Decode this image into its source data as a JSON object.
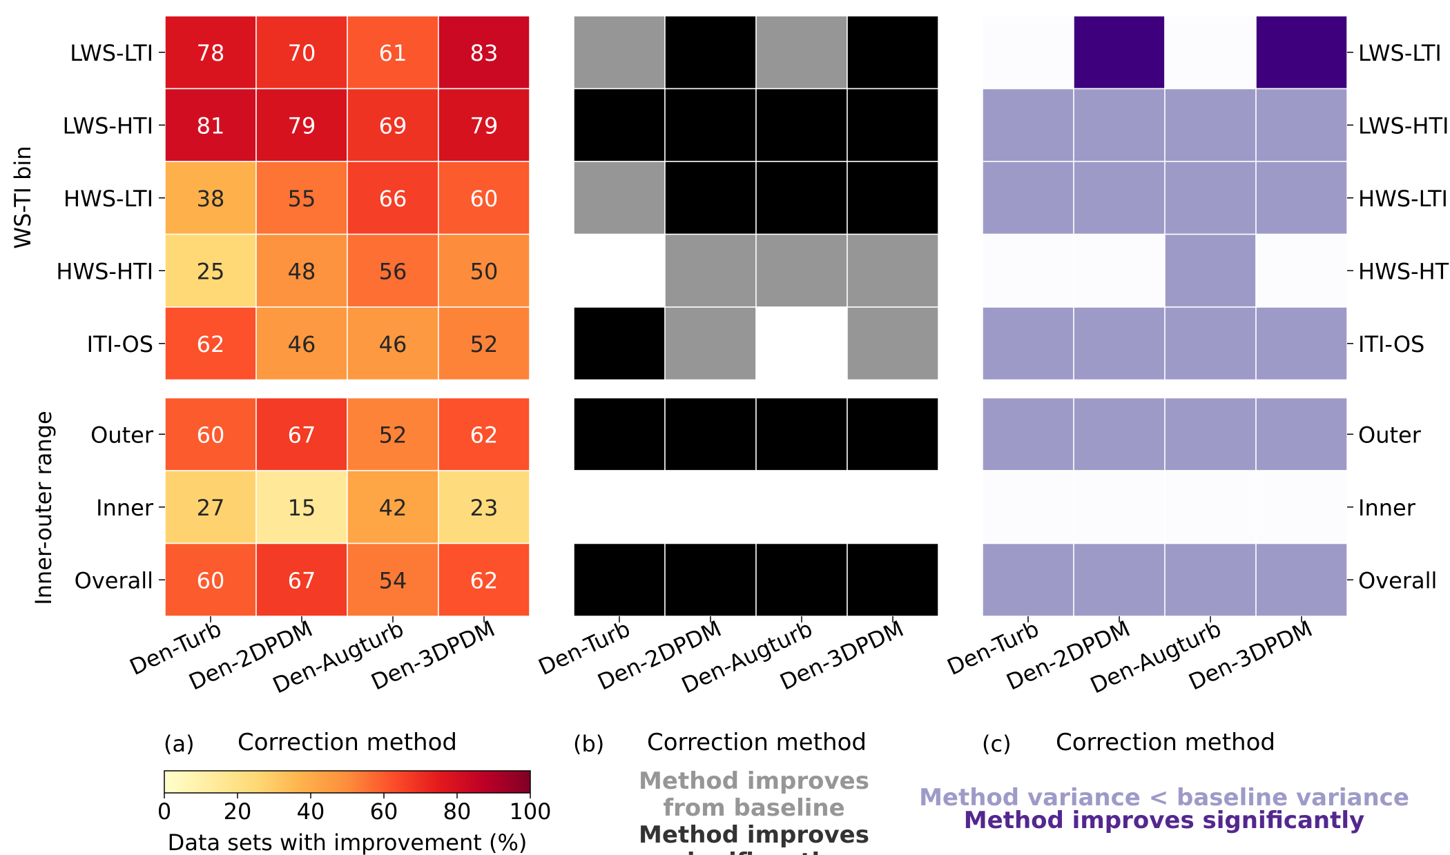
{
  "chart_data": [
    {
      "type": "heatmap",
      "panel_label": "(a)",
      "xlabel": "Correction method",
      "x_categories": [
        "Den-Turb",
        "Den-2DPDM",
        "Den-Augturb",
        "Den-3DPDM"
      ],
      "row_groups": [
        {
          "ylabel": "WS-TI bin",
          "rows": [
            "LWS-LTI",
            "LWS-HTI",
            "HWS-LTI",
            "HWS-HTI",
            "ITI-OS"
          ]
        },
        {
          "ylabel": "Inner-outer range",
          "rows": [
            "Outer",
            "Inner",
            "Overall"
          ]
        }
      ],
      "values": [
        [
          78,
          70,
          61,
          83
        ],
        [
          81,
          79,
          69,
          79
        ],
        [
          38,
          55,
          66,
          60
        ],
        [
          25,
          48,
          56,
          50
        ],
        [
          62,
          46,
          46,
          52
        ],
        [
          60,
          67,
          52,
          62
        ],
        [
          27,
          15,
          42,
          23
        ],
        [
          60,
          67,
          54,
          62
        ]
      ],
      "colormap": "YlOrRd",
      "colorbar": {
        "label": "Data sets with improvement (%)",
        "range": [
          0,
          100
        ],
        "ticks": [
          "0",
          "20",
          "40",
          "60",
          "80",
          "100"
        ]
      }
    },
    {
      "type": "heatmap",
      "panel_label": "(b)",
      "xlabel": "Correction method",
      "x_categories": [
        "Den-Turb",
        "Den-2DPDM",
        "Den-Augturb",
        "Den-3DPDM"
      ],
      "rows": [
        "LWS-LTI",
        "LWS-HTI",
        "HWS-LTI",
        "HWS-HTI",
        "ITI-OS",
        "Outer",
        "Inner",
        "Overall"
      ],
      "levels": [
        [
          1,
          2,
          1,
          2
        ],
        [
          2,
          2,
          2,
          2
        ],
        [
          1,
          2,
          2,
          2
        ],
        [
          0,
          1,
          1,
          1
        ],
        [
          2,
          1,
          0,
          1
        ],
        [
          2,
          2,
          2,
          2
        ],
        [
          0,
          0,
          0,
          0
        ],
        [
          2,
          2,
          2,
          2
        ]
      ],
      "level_colors": [
        "#ffffff",
        "#969696",
        "#000000"
      ],
      "legend": [
        {
          "text": "Method improves from baseline",
          "lines": [
            "Method improves",
            "from baseline"
          ],
          "color": "#969696"
        },
        {
          "text": "Method improves significantly",
          "lines": [
            "Method improves",
            "significantly"
          ],
          "color": "#333333"
        }
      ]
    },
    {
      "type": "heatmap",
      "panel_label": "(c)",
      "xlabel": "Correction method",
      "x_categories": [
        "Den-Turb",
        "Den-2DPDM",
        "Den-Augturb",
        "Den-3DPDM"
      ],
      "rows": [
        "LWS-LTI",
        "LWS-HTI",
        "HWS-LTI",
        "HWS-HTI",
        "ITI-OS",
        "Outer",
        "Inner",
        "Overall"
      ],
      "levels": [
        [
          0,
          2,
          0,
          2
        ],
        [
          1,
          1,
          1,
          1
        ],
        [
          1,
          1,
          1,
          1
        ],
        [
          0,
          0,
          1,
          0
        ],
        [
          1,
          1,
          1,
          1
        ],
        [
          1,
          1,
          1,
          1
        ],
        [
          0,
          0,
          0,
          0
        ],
        [
          1,
          1,
          1,
          1
        ]
      ],
      "level_colors": [
        "#fcfbfd",
        "#9e9ac8",
        "#3f007d"
      ],
      "legend": [
        {
          "text": "Method variance < baseline variance",
          "color": "#9e9ac8"
        },
        {
          "text": "Method improves significantly",
          "color": "#54278f"
        }
      ]
    }
  ]
}
